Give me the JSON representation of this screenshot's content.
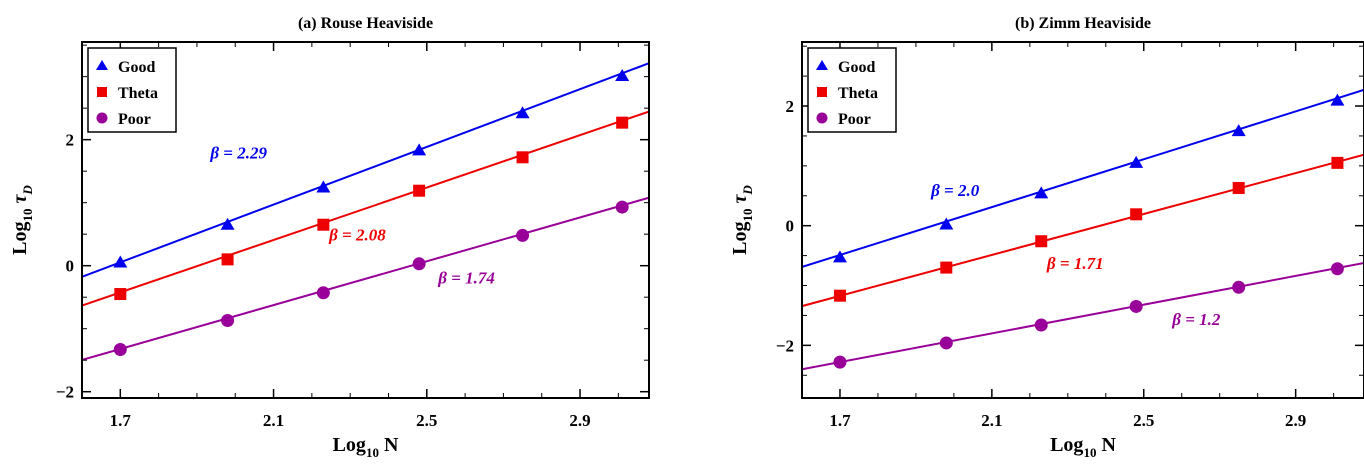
{
  "chart_data": [
    {
      "type": "scatter",
      "title": "(a) Rouse Heaviside",
      "xlabel": "N",
      "xlabel_prefix": "Log",
      "xlabel_sub": "10",
      "ylabel_prefix": "Log",
      "ylabel_sub": "10",
      "ylabel_sym": "τ",
      "ylabel_symsub": "D",
      "xlim": [
        1.6,
        3.08
      ],
      "ylim": [
        -2.1,
        3.55
      ],
      "xticks": [
        1.7,
        2.1,
        2.5,
        2.9
      ],
      "xtick_labels": [
        "1.7",
        "2.1",
        "2.5",
        "2.9"
      ],
      "yticks": [
        -2,
        0,
        2
      ],
      "ytick_labels": [
        "−2",
        "0",
        "2"
      ],
      "legend_position": "top-left",
      "series": [
        {
          "name": "Good",
          "marker": "triangle",
          "color": "#0000ee",
          "x": [
            1.7,
            1.98,
            2.23,
            2.48,
            2.75,
            3.01
          ],
          "y": [
            0.05,
            0.65,
            1.24,
            1.83,
            2.42,
            3.01
          ],
          "fit_slope": 2.29,
          "fit_intercept": -3.84,
          "label": "β = 2.29",
          "label_x": 1.935,
          "label_y": 1.7
        },
        {
          "name": "Theta",
          "marker": "square",
          "color": "#ee0000",
          "x": [
            1.7,
            1.98,
            2.23,
            2.48,
            2.75,
            3.01
          ],
          "y": [
            -0.45,
            0.1,
            0.65,
            1.19,
            1.72,
            2.27
          ],
          "fit_slope": 2.08,
          "fit_intercept": -3.96,
          "label": "β = 2.08",
          "label_x": 2.245,
          "label_y": 0.4
        },
        {
          "name": "Poor",
          "marker": "circle",
          "color": "#990099",
          "x": [
            1.7,
            1.98,
            2.23,
            2.48,
            2.75,
            3.01
          ],
          "y": [
            -1.33,
            -0.87,
            -0.43,
            0.03,
            0.48,
            0.93
          ],
          "fit_slope": 1.74,
          "fit_intercept": -4.28,
          "label": "β = 1.74",
          "label_x": 2.53,
          "label_y": -0.28
        }
      ]
    },
    {
      "type": "scatter",
      "title": "(b) Zimm Heaviside",
      "xlabel": "N",
      "xlabel_prefix": "Log",
      "xlabel_sub": "10",
      "ylabel_prefix": "Log",
      "ylabel_sub": "10",
      "ylabel_sym": "τ",
      "ylabel_symsub": "D",
      "xlim": [
        1.6,
        3.08
      ],
      "ylim": [
        -2.88,
        3.07
      ],
      "xticks": [
        1.7,
        2.1,
        2.5,
        2.9
      ],
      "xtick_labels": [
        "1.7",
        "2.1",
        "2.5",
        "2.9"
      ],
      "yticks": [
        -2,
        0,
        2
      ],
      "ytick_labels": [
        "−2",
        "0",
        "2"
      ],
      "legend_position": "top-left",
      "series": [
        {
          "name": "Good",
          "marker": "triangle",
          "color": "#0000ee",
          "x": [
            1.7,
            1.98,
            2.23,
            2.48,
            2.75,
            3.01
          ],
          "y": [
            -0.53,
            0.02,
            0.54,
            1.05,
            1.58,
            2.09
          ],
          "fit_slope": 2.0,
          "fit_intercept": -3.89,
          "label": "β = 2.0",
          "label_x": 1.94,
          "label_y": 0.5
        },
        {
          "name": "Theta",
          "marker": "square",
          "color": "#ee0000",
          "x": [
            1.7,
            1.98,
            2.23,
            2.48,
            2.75,
            3.01
          ],
          "y": [
            -1.17,
            -0.7,
            -0.26,
            0.19,
            0.63,
            1.05
          ],
          "fit_slope": 1.71,
          "fit_intercept": -4.08,
          "label": "β = 1.71",
          "label_x": 2.245,
          "label_y": -0.72
        },
        {
          "name": "Poor",
          "marker": "circle",
          "color": "#990099",
          "x": [
            1.7,
            1.98,
            2.23,
            2.48,
            2.75,
            3.01
          ],
          "y": [
            -2.28,
            -1.96,
            -1.66,
            -1.35,
            -1.03,
            -0.72
          ],
          "fit_slope": 1.2,
          "fit_intercept": -4.32,
          "label": "β = 1.2",
          "label_x": 2.575,
          "label_y": -1.66
        }
      ]
    }
  ]
}
